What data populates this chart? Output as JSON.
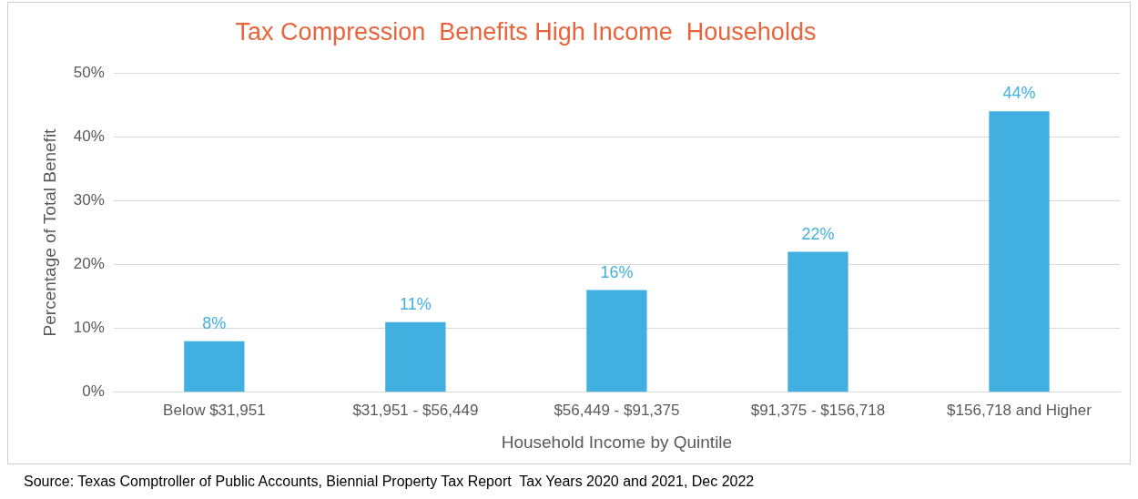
{
  "chart_data": {
    "type": "bar",
    "title": "Tax Compression  Benefits High Income  Households",
    "categories": [
      "Below $31,951",
      "$31,951 - $56,449",
      "$56,449 - $91,375",
      "$91,375 - $156,718",
      "$156,718 and Higher"
    ],
    "values": [
      8,
      11,
      16,
      22,
      44
    ],
    "value_labels": [
      "8%",
      "11%",
      "16%",
      "22%",
      "44%"
    ],
    "color": "#41b0e0",
    "xlabel": "Household Income by Quintile",
    "ylabel": "Percentage of Total Benefit",
    "ylim": [
      0,
      50
    ],
    "yticks": [
      {
        "value": 0,
        "label": "0%"
      },
      {
        "value": 10,
        "label": "10%"
      },
      {
        "value": 20,
        "label": "20%"
      },
      {
        "value": 30,
        "label": "30%"
      },
      {
        "value": 40,
        "label": "40%"
      },
      {
        "value": 50,
        "label": "50%"
      }
    ],
    "grid": "y",
    "legend": false,
    "annotations": [
      "Source: Texas Comptroller of Public Accounts, Biennial Property Tax Report  Tax Years 2020 and 2021, Dec 2022"
    ]
  }
}
